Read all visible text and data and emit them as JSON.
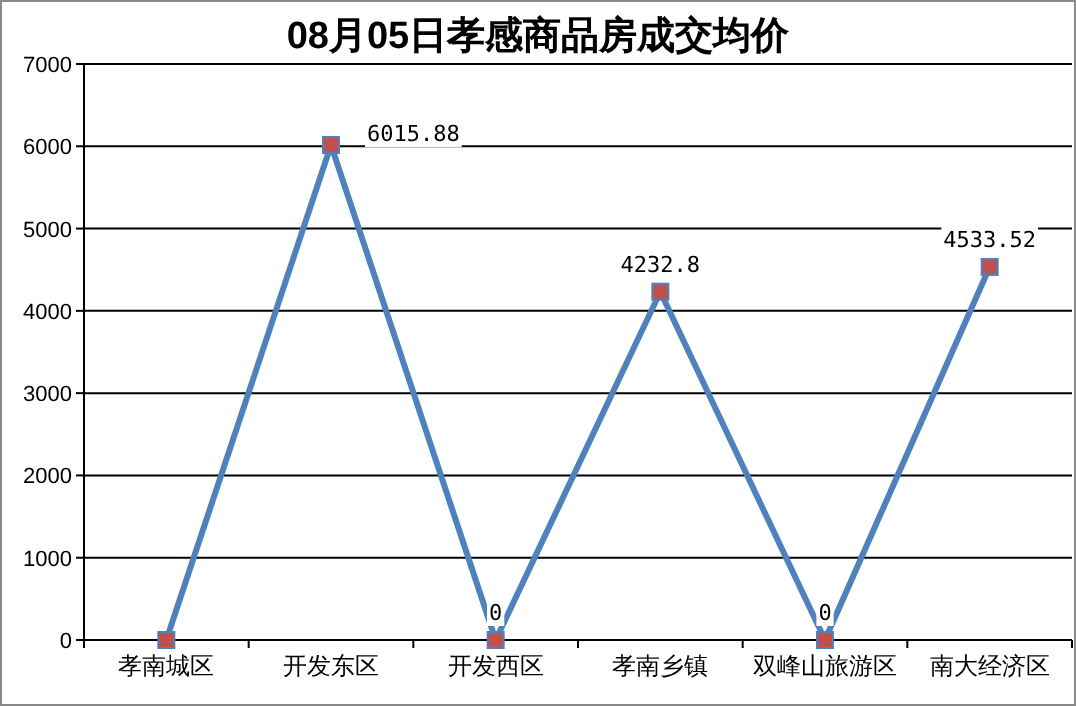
{
  "chart_data": {
    "type": "line",
    "title": "08月05日孝感商品房成交均价",
    "categories": [
      "孝南城区",
      "开发东区",
      "开发西区",
      "孝南乡镇",
      "双峰山旅游区",
      "南大经济区"
    ],
    "series": [
      {
        "color": "#4f81bd",
        "values": [
          0,
          6015.88,
          0,
          4232.8,
          0,
          4533.52
        ],
        "value_labels": [
          null,
          "6015.88",
          "0",
          "4232.8",
          "0",
          "4533.52"
        ]
      }
    ],
    "ylim": [
      0,
      7000
    ],
    "yticks": [
      0,
      1000,
      2000,
      3000,
      4000,
      5000,
      6000,
      7000
    ],
    "grid": "y",
    "marker": "square",
    "line_style": "solid"
  }
}
